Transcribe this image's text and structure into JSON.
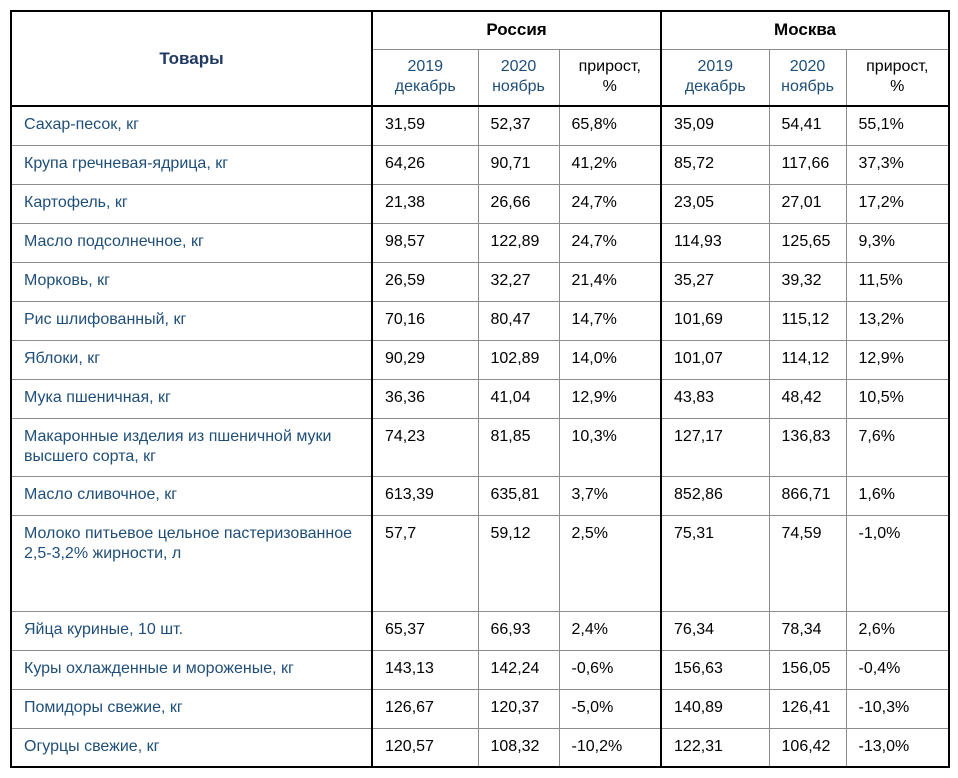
{
  "table": {
    "products_column_header": "Товары",
    "region_groups": [
      {
        "label": "Россия"
      },
      {
        "label": "Москва"
      }
    ],
    "period_headers": {
      "first": "2019\nдекабрь",
      "second": "2020\nноябрь",
      "growth": "прирост,\n%"
    },
    "colors": {
      "products_header_navy": "#1F3864",
      "product_name_blue": "#1F4E79",
      "value_text": "#000000",
      "thick_border": "#000000",
      "thin_border": "#8c8c8c"
    },
    "rows": [
      {
        "name": "Сахар-песок, кг",
        "russia_2019": "31,59",
        "russia_2020": "52,37",
        "russia_growth": "65,8%",
        "moscow_2019": "35,09",
        "moscow_2020": "54,41",
        "moscow_growth": "55,1%"
      },
      {
        "name": "Крупа гречневая-ядрица, кг",
        "russia_2019": "64,26",
        "russia_2020": "90,71",
        "russia_growth": "41,2%",
        "moscow_2019": "85,72",
        "moscow_2020": "117,66",
        "moscow_growth": "37,3%"
      },
      {
        "name": "Картофель, кг",
        "russia_2019": "21,38",
        "russia_2020": "26,66",
        "russia_growth": "24,7%",
        "moscow_2019": "23,05",
        "moscow_2020": "27,01",
        "moscow_growth": "17,2%"
      },
      {
        "name": "Масло подсолнечное, кг",
        "russia_2019": "98,57",
        "russia_2020": "122,89",
        "russia_growth": "24,7%",
        "moscow_2019": "114,93",
        "moscow_2020": "125,65",
        "moscow_growth": "9,3%"
      },
      {
        "name": "Морковь, кг",
        "russia_2019": "26,59",
        "russia_2020": "32,27",
        "russia_growth": "21,4%",
        "moscow_2019": "35,27",
        "moscow_2020": "39,32",
        "moscow_growth": "11,5%"
      },
      {
        "name": "Рис шлифованный, кг",
        "russia_2019": "70,16",
        "russia_2020": "80,47",
        "russia_growth": "14,7%",
        "moscow_2019": "101,69",
        "moscow_2020": "115,12",
        "moscow_growth": "13,2%"
      },
      {
        "name": "Яблоки, кг",
        "russia_2019": "90,29",
        "russia_2020": "102,89",
        "russia_growth": "14,0%",
        "moscow_2019": "101,07",
        "moscow_2020": "114,12",
        "moscow_growth": "12,9%"
      },
      {
        "name": "Мука пшеничная, кг",
        "russia_2019": "36,36",
        "russia_2020": "41,04",
        "russia_growth": "12,9%",
        "moscow_2019": "43,83",
        "moscow_2020": "48,42",
        "moscow_growth": "10,5%"
      },
      {
        "name": "Макаронные изделия из пшеничной муки высшего сорта, кг",
        "russia_2019": "74,23",
        "russia_2020": "81,85",
        "russia_growth": "10,3%",
        "moscow_2019": "127,17",
        "moscow_2020": "136,83",
        "moscow_growth": "7,6%"
      },
      {
        "name": "Масло сливочное, кг",
        "russia_2019": "613,39",
        "russia_2020": "635,81",
        "russia_growth": "3,7%",
        "moscow_2019": "852,86",
        "moscow_2020": "866,71",
        "moscow_growth": "1,6%"
      },
      {
        "name": "Молоко питьевое цельное пастеризованное 2,5-3,2% жирности, л",
        "russia_2019": "57,7",
        "russia_2020": "59,12",
        "russia_growth": "2,5%",
        "moscow_2019": "75,31",
        "moscow_2020": "74,59",
        "moscow_growth": "-1,0%"
      },
      {
        "name": "Яйца куриные, 10 шт.",
        "russia_2019": "65,37",
        "russia_2020": "66,93",
        "russia_growth": "2,4%",
        "moscow_2019": "76,34",
        "moscow_2020": "78,34",
        "moscow_growth": "2,6%"
      },
      {
        "name": "Куры охлажденные и мороженые, кг",
        "russia_2019": "143,13",
        "russia_2020": "142,24",
        "russia_growth": "-0,6%",
        "moscow_2019": "156,63",
        "moscow_2020": "156,05",
        "moscow_growth": "-0,4%"
      },
      {
        "name": "Помидоры свежие, кг",
        "russia_2019": "126,67",
        "russia_2020": "120,37",
        "russia_growth": "-5,0%",
        "moscow_2019": "140,89",
        "moscow_2020": "126,41",
        "moscow_growth": "-10,3%"
      },
      {
        "name": "Огурцы свежие, кг",
        "russia_2019": "120,57",
        "russia_2020": "108,32",
        "russia_growth": "-10,2%",
        "moscow_2019": "122,31",
        "moscow_2020": "106,42",
        "moscow_growth": "-13,0%"
      }
    ]
  }
}
